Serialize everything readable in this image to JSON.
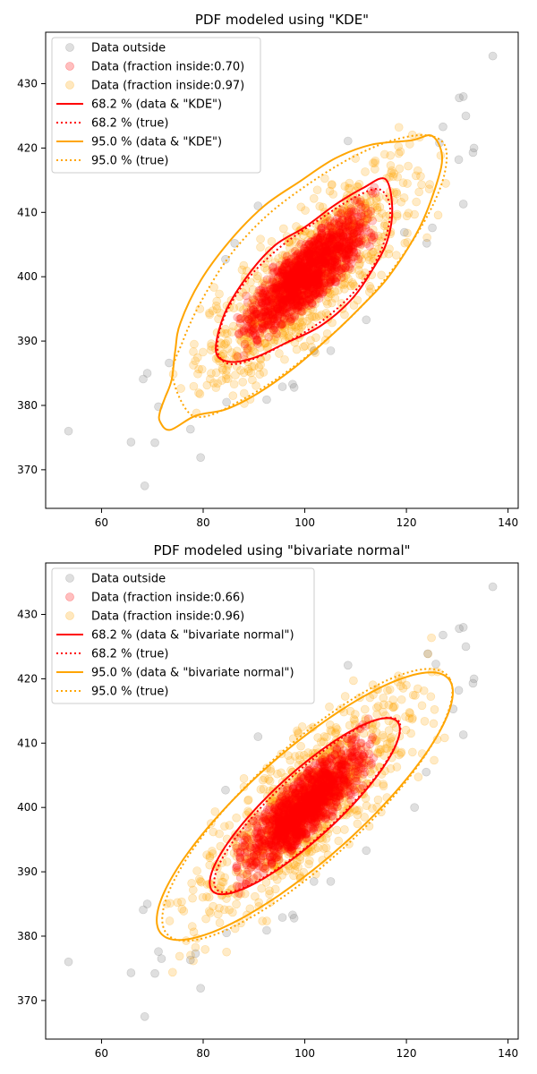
{
  "chart_data": [
    {
      "type": "scatter",
      "title": "PDF modeled using \"KDE\"",
      "xlabel": "",
      "ylabel": "",
      "xlim": [
        49,
        142
      ],
      "ylim": [
        364,
        438
      ],
      "xticks": [
        60,
        80,
        100,
        120,
        140
      ],
      "yticks": [
        370,
        380,
        390,
        400,
        410,
        420,
        430
      ],
      "grid": false,
      "legend_position": "top-left",
      "legend": [
        {
          "label": "Data outside",
          "kind": "marker",
          "color": "#808080",
          "alpha": 0.25
        },
        {
          "label": "Data (fraction inside:0.70)",
          "kind": "marker",
          "color": "#ff0000",
          "alpha": 0.25
        },
        {
          "label": "Data (fraction inside:0.97)",
          "kind": "marker",
          "color": "#ffa500",
          "alpha": 0.25
        },
        {
          "label": "68.2 % (data & \"KDE\")",
          "kind": "line",
          "color": "#ff0000",
          "dash": "solid"
        },
        {
          "label": "68.2 % (true)",
          "kind": "line",
          "color": "#ff0000",
          "dash": "dotted"
        },
        {
          "label": "95.0 % (data & \"KDE\")",
          "kind": "line",
          "color": "#ffa500",
          "dash": "solid"
        },
        {
          "label": "95.0 % (true)",
          "kind": "line",
          "color": "#ffa500",
          "dash": "dotted"
        }
      ],
      "outside_points": [
        [
          53.5,
          376
        ],
        [
          65.8,
          374.3
        ],
        [
          68.5,
          367.5
        ],
        [
          70.5,
          374.2
        ],
        [
          79.5,
          371.9
        ],
        [
          68.2,
          384.1
        ],
        [
          69,
          385
        ],
        [
          73.3,
          386.6
        ],
        [
          71.2,
          379.8
        ],
        [
          77.5,
          376.3
        ],
        [
          137,
          434.3
        ],
        [
          131.2,
          428
        ],
        [
          130.4,
          427.8
        ],
        [
          131.7,
          425
        ],
        [
          127.2,
          423.3
        ],
        [
          133.3,
          420
        ],
        [
          133.1,
          419.3
        ],
        [
          130.3,
          418.2
        ],
        [
          126.5,
          420.8
        ],
        [
          131.2,
          411.3
        ],
        [
          125.1,
          407.6
        ],
        [
          124,
          405.2
        ],
        [
          119.6,
          406.9
        ],
        [
          108.5,
          421.1
        ],
        [
          84.4,
          402.7
        ],
        [
          86.2,
          405.2
        ],
        [
          90.8,
          411
        ],
        [
          112.1,
          393.3
        ],
        [
          105.1,
          388.5
        ],
        [
          101.8,
          388.5
        ],
        [
          97.6,
          383.3
        ],
        [
          97.9,
          382.8
        ],
        [
          95.6,
          382.9
        ],
        [
          92.5,
          380.9
        ],
        [
          84.6,
          380.5
        ]
      ],
      "inner_region": {
        "center": [
          100.5,
          400.5
        ],
        "sx": 10,
        "sy": 8,
        "rho": 0.82,
        "fraction_inside": 0.7
      },
      "outer_region": {
        "center": [
          100.5,
          400
        ],
        "sx": 10.5,
        "sy": 8.8,
        "rho": 0.82,
        "fraction_inside": 0.97
      },
      "contours": {
        "inner_data": [
          [
            82.5,
            388.5
          ],
          [
            85,
            386.8
          ],
          [
            90,
            387.4
          ],
          [
            96,
            389.6
          ],
          [
            103,
            392.3
          ],
          [
            109,
            396.3
          ],
          [
            113,
            400.7
          ],
          [
            116.2,
            405.5
          ],
          [
            117.2,
            410.8
          ],
          [
            115.8,
            415.2
          ],
          [
            111.5,
            413.8
          ],
          [
            106,
            411.2
          ],
          [
            100,
            407.7
          ],
          [
            94,
            404.8
          ],
          [
            88.5,
            399.9
          ],
          [
            84.2,
            394.2
          ]
        ],
        "inner_true": [
          [
            82.8,
            388.8
          ],
          [
            84.8,
            386.5
          ],
          [
            89.5,
            387.1
          ],
          [
            96.5,
            389.8
          ],
          [
            104.5,
            393.8
          ],
          [
            111.5,
            399.3
          ],
          [
            115.5,
            405.1
          ],
          [
            116.8,
            410.6
          ],
          [
            114.6,
            413.6
          ],
          [
            109.5,
            412.2
          ],
          [
            102.5,
            408.7
          ],
          [
            95,
            404.5
          ],
          [
            88.5,
            399.4
          ],
          [
            84.2,
            393.8
          ]
        ],
        "outer_data": [
          [
            71.5,
            377.5
          ],
          [
            73.5,
            376.2
          ],
          [
            78.5,
            378.4
          ],
          [
            84.5,
            379.4
          ],
          [
            91,
            382
          ],
          [
            98,
            385.9
          ],
          [
            105,
            390.7
          ],
          [
            110.5,
            394.9
          ],
          [
            116.5,
            400
          ],
          [
            122.5,
            407.5
          ],
          [
            126,
            414.6
          ],
          [
            127,
            418.9
          ],
          [
            125,
            421.9
          ],
          [
            121,
            421.2
          ],
          [
            113,
            420.5
          ],
          [
            106,
            418.4
          ],
          [
            99,
            414.8
          ],
          [
            92,
            411
          ],
          [
            85.5,
            405.8
          ],
          [
            79.5,
            399.4
          ],
          [
            75.5,
            392.8
          ],
          [
            74.5,
            388.5
          ],
          [
            73.8,
            384
          ],
          [
            72.5,
            381.2
          ],
          [
            71.5,
            379
          ]
        ],
        "outer_true": [
          [
            74,
            384.8
          ],
          [
            76.8,
            379.2
          ],
          [
            80.5,
            378.3
          ],
          [
            87,
            380.6
          ],
          [
            95,
            384.4
          ],
          [
            103.5,
            389.7
          ],
          [
            112,
            396.1
          ],
          [
            119,
            403
          ],
          [
            124.5,
            410
          ],
          [
            127.5,
            416
          ],
          [
            127.5,
            420.5
          ],
          [
            123.5,
            422
          ],
          [
            116.5,
            421
          ],
          [
            108.5,
            418.2
          ],
          [
            100,
            414
          ],
          [
            92,
            409.1
          ],
          [
            85,
            403
          ],
          [
            79.5,
            396
          ],
          [
            76,
            390
          ]
        ]
      }
    },
    {
      "type": "scatter",
      "title": "PDF modeled using \"bivariate normal\"",
      "xlabel": "",
      "ylabel": "",
      "xlim": [
        49,
        142
      ],
      "ylim": [
        364,
        438
      ],
      "xticks": [
        60,
        80,
        100,
        120,
        140
      ],
      "yticks": [
        370,
        380,
        390,
        400,
        410,
        420,
        430
      ],
      "grid": false,
      "legend_position": "top-left",
      "legend": [
        {
          "label": "Data outside",
          "kind": "marker",
          "color": "#808080",
          "alpha": 0.25
        },
        {
          "label": "Data (fraction inside:0.66)",
          "kind": "marker",
          "color": "#ff0000",
          "alpha": 0.25
        },
        {
          "label": "Data (fraction inside:0.96)",
          "kind": "marker",
          "color": "#ffa500",
          "alpha": 0.25
        },
        {
          "label": "68.2 % (data & \"bivariate normal\")",
          "kind": "line",
          "color": "#ff0000",
          "dash": "solid"
        },
        {
          "label": "68.2 % (true)",
          "kind": "line",
          "color": "#ff0000",
          "dash": "dotted"
        },
        {
          "label": "95.0 % (data & \"bivariate normal\")",
          "kind": "line",
          "color": "#ffa500",
          "dash": "solid"
        },
        {
          "label": "95.0 % (true)",
          "kind": "line",
          "color": "#ffa500",
          "dash": "dotted"
        }
      ],
      "outside_points": [
        [
          53.5,
          376
        ],
        [
          65.8,
          374.3
        ],
        [
          68.5,
          367.5
        ],
        [
          70.5,
          374.2
        ],
        [
          79.5,
          371.9
        ],
        [
          68.2,
          384.1
        ],
        [
          69,
          385
        ],
        [
          71.2,
          377.6
        ],
        [
          71.8,
          376.5
        ],
        [
          77.5,
          376.3
        ],
        [
          137,
          434.3
        ],
        [
          131.2,
          428
        ],
        [
          130.4,
          427.8
        ],
        [
          131.7,
          425
        ],
        [
          127.2,
          426.8
        ],
        [
          133.3,
          420
        ],
        [
          133.1,
          419.3
        ],
        [
          130.3,
          418.2
        ],
        [
          129.2,
          415.3
        ],
        [
          131.2,
          411.3
        ],
        [
          124.2,
          423.9
        ],
        [
          125.8,
          422.3
        ],
        [
          123.9,
          405.5
        ],
        [
          121.6,
          400
        ],
        [
          108.5,
          422.1
        ],
        [
          90.8,
          411
        ],
        [
          84.4,
          402.7
        ],
        [
          112.1,
          393.3
        ],
        [
          105.1,
          388.5
        ],
        [
          101.8,
          388.5
        ],
        [
          97.6,
          383.3
        ],
        [
          97.9,
          382.8
        ],
        [
          95.6,
          382.9
        ],
        [
          92.5,
          380.9
        ],
        [
          84.6,
          380.5
        ],
        [
          78.5,
          377.3
        ]
      ],
      "inner_region": {
        "center": [
          100,
          400.2
        ],
        "sx": 9.7,
        "sy": 7.8,
        "rho": 0.82,
        "fraction_inside": 0.66
      },
      "outer_region": {
        "center": [
          100,
          400.2
        ],
        "sx": 10.6,
        "sy": 8.8,
        "rho": 0.82,
        "fraction_inside": 0.96
      },
      "contours": {
        "inner_data": {
          "center": [
            100,
            400.2
          ],
          "a": 22.5,
          "b": 5.6,
          "angle_deg": 35
        },
        "inner_true": {
          "center": [
            100.5,
            400.4
          ],
          "a": 22.2,
          "b": 5.3,
          "angle_deg": 35.5
        },
        "outer_data": {
          "center": [
            100,
            400.2
          ],
          "a": 34.6,
          "b": 9.2,
          "angle_deg": 34
        },
        "outer_true": {
          "center": [
            100.5,
            400.4
          ],
          "a": 34.2,
          "b": 9.6,
          "angle_deg": 35
        }
      }
    }
  ]
}
